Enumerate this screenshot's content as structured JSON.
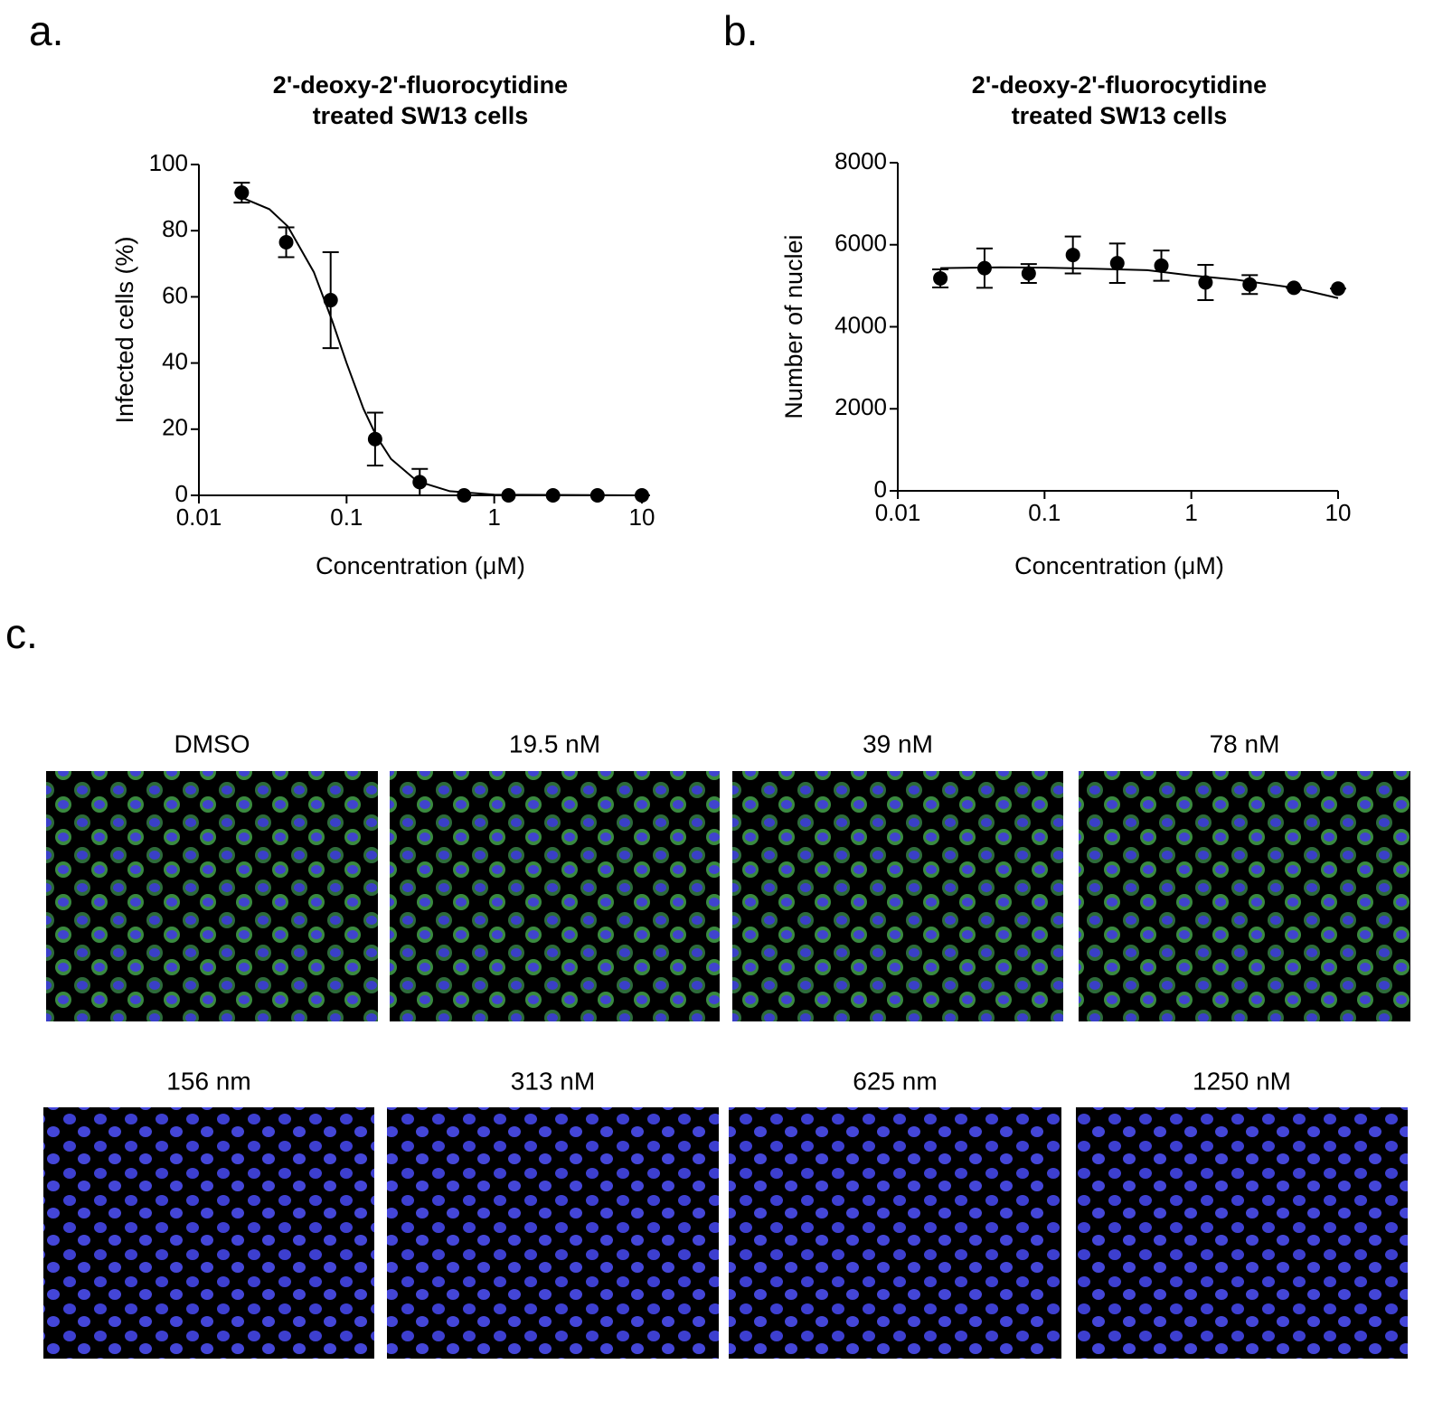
{
  "panel_labels": [
    "a.",
    "b.",
    "c."
  ],
  "chart_data": [
    {
      "type": "scatter",
      "title": [
        "2'-deoxy-2'-fluorocytidine",
        "treated SW13 cells"
      ],
      "x_label": "Concentration (μM)",
      "y_label": "Infected cells (%)",
      "xscale": "log",
      "xlim": [
        0.01,
        10
      ],
      "xticks": [
        0.01,
        0.1,
        1,
        10
      ],
      "ylim": [
        0,
        100
      ],
      "yticks": [
        0,
        20,
        40,
        60,
        80,
        100
      ],
      "color": "#000000",
      "x": [
        0.0195,
        0.039,
        0.078,
        0.156,
        0.313,
        0.625,
        1.25,
        2.5,
        5,
        10
      ],
      "values": [
        91.5,
        76.5,
        59,
        17,
        4,
        0,
        0,
        0,
        0,
        0
      ],
      "errors": [
        3,
        4.5,
        14.5,
        8,
        4,
        0,
        0,
        0,
        0,
        0
      ],
      "fit": {
        "x": [
          0.0195,
          0.03,
          0.04,
          0.06,
          0.08,
          0.1,
          0.13,
          0.16,
          0.2,
          0.3,
          0.5,
          1,
          10
        ],
        "values": [
          90,
          86.5,
          81.3,
          67.5,
          52.7,
          40,
          26.2,
          17.7,
          11,
          4.3,
          1.25,
          0.22,
          0
        ]
      }
    },
    {
      "type": "scatter",
      "title": [
        "2'-deoxy-2'-fluorocytidine",
        "treated SW13 cells"
      ],
      "x_label": "Concentration (μM)",
      "y_label": "Number of nuclei",
      "xscale": "log",
      "xlim": [
        0.01,
        10
      ],
      "xticks": [
        0.01,
        0.1,
        1,
        10
      ],
      "ylim": [
        0,
        8000
      ],
      "yticks": [
        0,
        2000,
        4000,
        6000,
        8000
      ],
      "color": "#000000",
      "x": [
        0.0195,
        0.039,
        0.078,
        0.156,
        0.313,
        0.625,
        1.25,
        2.5,
        5,
        10
      ],
      "values": [
        5180,
        5430,
        5300,
        5750,
        5550,
        5490,
        5080,
        5030,
        4950,
        4930
      ],
      "errors": [
        220,
        480,
        230,
        450,
        480,
        370,
        430,
        230,
        0,
        0
      ],
      "fit": {
        "x": [
          0.0195,
          0.05,
          0.1,
          0.2,
          0.5,
          1,
          2,
          5,
          10
        ],
        "values": [
          5430,
          5450,
          5440,
          5420,
          5380,
          5250,
          5150,
          4950,
          4700
        ]
      }
    }
  ],
  "images": {
    "captions": [
      "DMSO",
      "19.5 nM",
      "39 nM",
      "78 nM",
      "156 nm",
      "313 nM",
      "625 nm",
      "1250 nM"
    ]
  }
}
